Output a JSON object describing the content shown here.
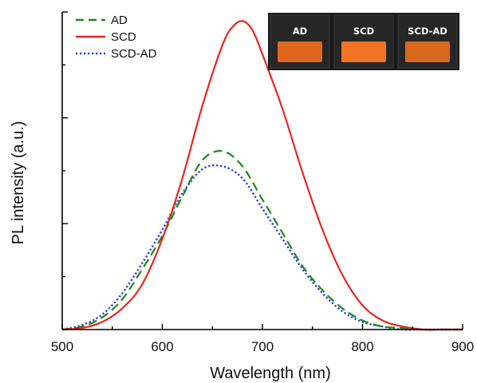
{
  "chart_data": {
    "type": "line",
    "xlabel": "Wavelength (nm)",
    "ylabel": "PL intensity (a.u.)",
    "xlim": [
      500,
      900
    ],
    "ylim": [
      0,
      1.05
    ],
    "x_ticks": [
      "500",
      "600",
      "700",
      "800",
      "900"
    ],
    "y_tick_labels_shown": false,
    "grid": false,
    "legend_position": "top-left",
    "series": [
      {
        "name": "AD",
        "color": "#1a8a1a",
        "style": "dashed",
        "x": [
          500,
          520,
          540,
          560,
          580,
          600,
          620,
          640,
          660,
          680,
          700,
          720,
          740,
          760,
          780,
          800,
          820,
          840,
          860,
          880,
          900
        ],
        "y": [
          0.0,
          0.01,
          0.04,
          0.1,
          0.2,
          0.31,
          0.44,
          0.56,
          0.59,
          0.54,
          0.43,
          0.32,
          0.21,
          0.13,
          0.07,
          0.03,
          0.01,
          0.005,
          0.0,
          0.0,
          0.0
        ]
      },
      {
        "name": "SCD",
        "color": "#e8261d",
        "style": "solid",
        "x": [
          500,
          520,
          540,
          560,
          580,
          600,
          620,
          640,
          660,
          670,
          680,
          690,
          700,
          720,
          740,
          760,
          780,
          800,
          820,
          840,
          860,
          880,
          900
        ],
        "y": [
          0.0,
          0.005,
          0.025,
          0.07,
          0.15,
          0.3,
          0.5,
          0.74,
          0.94,
          1.0,
          1.02,
          0.99,
          0.91,
          0.73,
          0.52,
          0.33,
          0.18,
          0.08,
          0.03,
          0.01,
          0.0,
          0.0,
          0.0
        ]
      },
      {
        "name": "SCD-AD",
        "color": "#2a3bd6",
        "style": "dotted",
        "x": [
          500,
          520,
          540,
          560,
          580,
          600,
          620,
          640,
          660,
          680,
          700,
          720,
          740,
          760,
          780,
          800,
          820,
          840,
          860,
          880,
          900
        ],
        "y": [
          0.0,
          0.015,
          0.05,
          0.12,
          0.22,
          0.33,
          0.45,
          0.53,
          0.54,
          0.5,
          0.4,
          0.3,
          0.2,
          0.12,
          0.06,
          0.025,
          0.01,
          0.0,
          0.0,
          0.0,
          0.0
        ]
      }
    ]
  },
  "inset": {
    "labels": [
      "AD",
      "SCD",
      "SCD-AD"
    ],
    "sample_colors": [
      "#e0671f",
      "#f27422",
      "#d9691e"
    ],
    "background": "#1a1a1a"
  }
}
